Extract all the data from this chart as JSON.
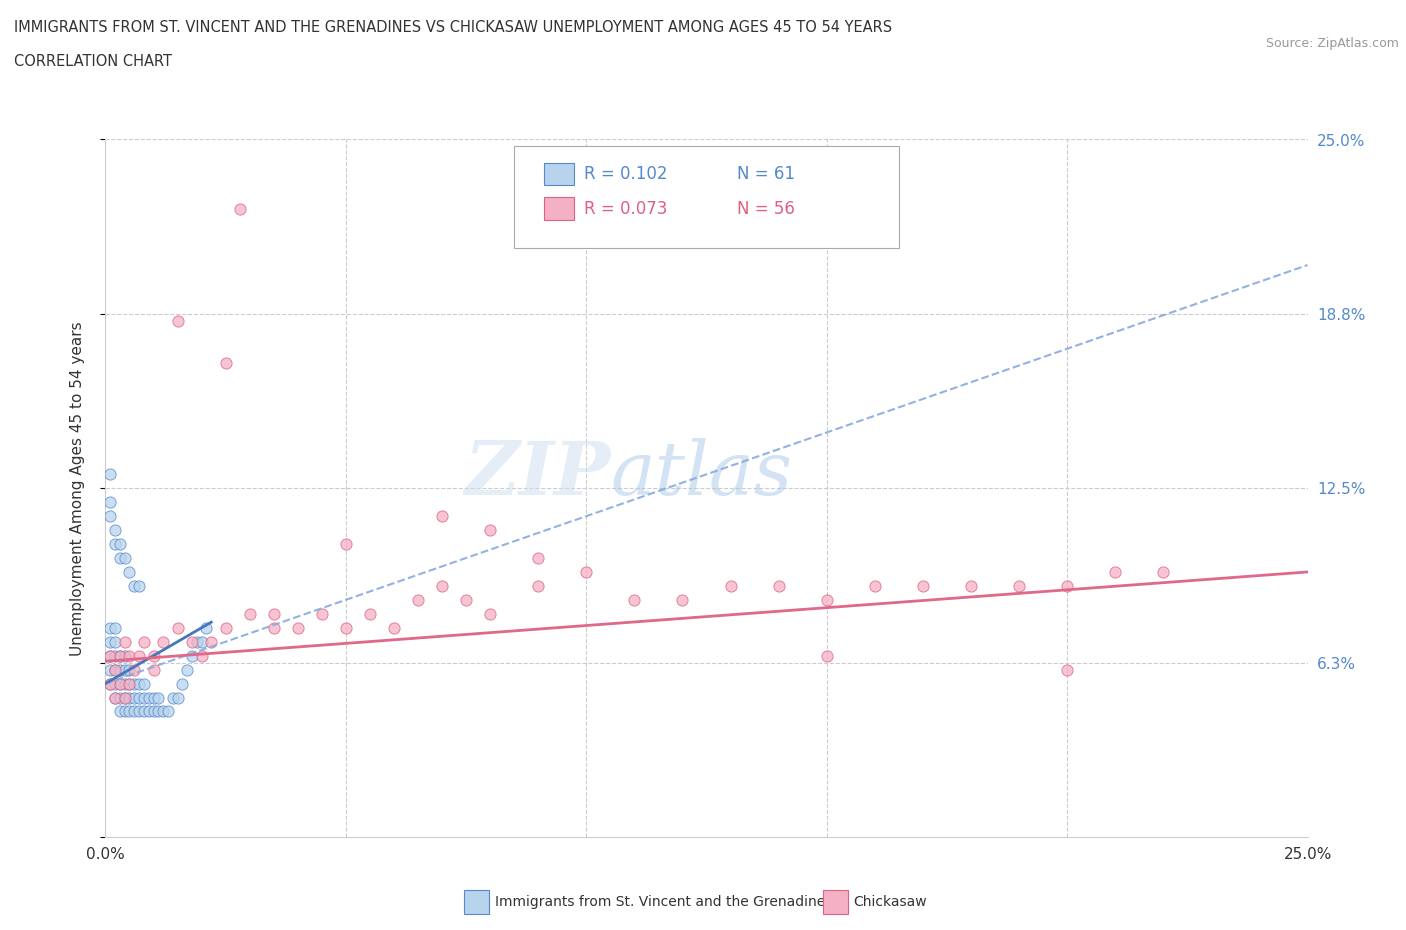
{
  "title_line1": "IMMIGRANTS FROM ST. VINCENT AND THE GRENADINES VS CHICKASAW UNEMPLOYMENT AMONG AGES 45 TO 54 YEARS",
  "title_line2": "CORRELATION CHART",
  "source": "Source: ZipAtlas.com",
  "ylabel": "Unemployment Among Ages 45 to 54 years",
  "legend_blue_r": "R = 0.102",
  "legend_blue_n": "N = 61",
  "legend_pink_r": "R = 0.073",
  "legend_pink_n": "N = 56",
  "blue_face": "#b8d4ec",
  "blue_edge": "#5588cc",
  "pink_face": "#f4b0c4",
  "pink_edge": "#e06080",
  "blue_line": "#4477bb",
  "blue_dash": "#88aadd",
  "pink_line": "#e06888",
  "grid_color": "#cccccc",
  "title_color": "#333333",
  "right_axis_color": "#5588cc",
  "ytick_positions": [
    0.0,
    0.0625,
    0.125,
    0.1875,
    0.25
  ],
  "ytick_labels_right": [
    "",
    "6.3%",
    "12.5%",
    "18.8%",
    "25.0%"
  ],
  "xlim": [
    0.0,
    0.25
  ],
  "ylim": [
    0.0,
    0.25
  ],
  "legend_label_blue": "Immigrants from St. Vincent and the Grenadines",
  "legend_label_pink": "Chickasaw",
  "blue_x": [
    0.001,
    0.001,
    0.001,
    0.001,
    0.001,
    0.002,
    0.002,
    0.002,
    0.002,
    0.002,
    0.002,
    0.003,
    0.003,
    0.003,
    0.003,
    0.003,
    0.004,
    0.004,
    0.004,
    0.004,
    0.004,
    0.005,
    0.005,
    0.005,
    0.005,
    0.006,
    0.006,
    0.006,
    0.007,
    0.007,
    0.007,
    0.008,
    0.008,
    0.008,
    0.009,
    0.009,
    0.01,
    0.01,
    0.011,
    0.011,
    0.012,
    0.013,
    0.014,
    0.015,
    0.016,
    0.017,
    0.018,
    0.019,
    0.02,
    0.021,
    0.001,
    0.001,
    0.001,
    0.002,
    0.002,
    0.003,
    0.003,
    0.004,
    0.005,
    0.006,
    0.007
  ],
  "blue_y": [
    0.055,
    0.06,
    0.065,
    0.07,
    0.075,
    0.055,
    0.06,
    0.065,
    0.07,
    0.075,
    0.05,
    0.045,
    0.05,
    0.055,
    0.06,
    0.065,
    0.045,
    0.05,
    0.055,
    0.06,
    0.065,
    0.045,
    0.05,
    0.055,
    0.06,
    0.045,
    0.05,
    0.055,
    0.045,
    0.05,
    0.055,
    0.045,
    0.05,
    0.055,
    0.045,
    0.05,
    0.045,
    0.05,
    0.045,
    0.05,
    0.045,
    0.045,
    0.05,
    0.05,
    0.055,
    0.06,
    0.065,
    0.07,
    0.07,
    0.075,
    0.13,
    0.12,
    0.115,
    0.11,
    0.105,
    0.105,
    0.1,
    0.1,
    0.095,
    0.09,
    0.09
  ],
  "pink_x": [
    0.001,
    0.002,
    0.003,
    0.004,
    0.005,
    0.006,
    0.007,
    0.008,
    0.01,
    0.012,
    0.015,
    0.018,
    0.02,
    0.022,
    0.025,
    0.028,
    0.03,
    0.035,
    0.04,
    0.045,
    0.05,
    0.055,
    0.06,
    0.065,
    0.07,
    0.075,
    0.08,
    0.09,
    0.1,
    0.11,
    0.12,
    0.13,
    0.14,
    0.15,
    0.16,
    0.17,
    0.18,
    0.19,
    0.2,
    0.21,
    0.22,
    0.001,
    0.002,
    0.003,
    0.004,
    0.005,
    0.01,
    0.015,
    0.025,
    0.035,
    0.05,
    0.07,
    0.08,
    0.09,
    0.15,
    0.2
  ],
  "pink_y": [
    0.065,
    0.06,
    0.065,
    0.07,
    0.065,
    0.06,
    0.065,
    0.07,
    0.065,
    0.07,
    0.075,
    0.07,
    0.065,
    0.07,
    0.075,
    0.225,
    0.08,
    0.075,
    0.075,
    0.08,
    0.075,
    0.08,
    0.075,
    0.085,
    0.09,
    0.085,
    0.08,
    0.09,
    0.095,
    0.085,
    0.085,
    0.09,
    0.09,
    0.085,
    0.09,
    0.09,
    0.09,
    0.09,
    0.09,
    0.095,
    0.095,
    0.055,
    0.05,
    0.055,
    0.05,
    0.055,
    0.06,
    0.185,
    0.17,
    0.08,
    0.105,
    0.115,
    0.11,
    0.1,
    0.065,
    0.06
  ]
}
